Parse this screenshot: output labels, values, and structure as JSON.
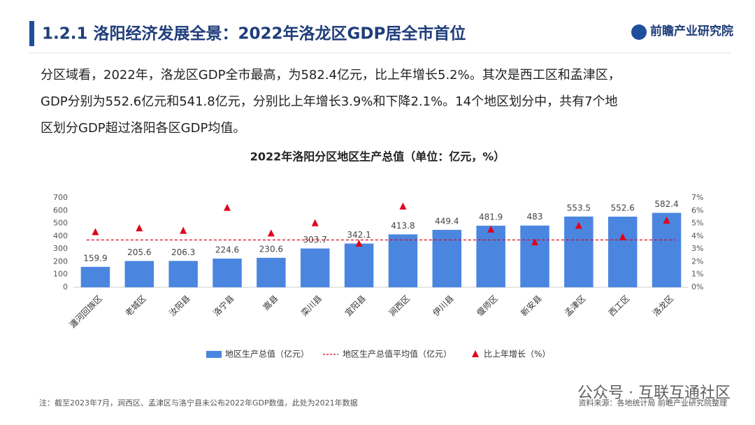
{
  "header": {
    "title": "1.2.1 洛阳经济发展全景：2022年洛龙区GDP居全市首位",
    "logo": "前瞻产业研究院"
  },
  "body": [
    "分区域看，2022年，洛龙区GDP全市最高，为582.4亿元，比上年增长5.2%。其次是西工区和孟津区，",
    "GDP分别为552.6亿元和541.8亿元，分别比上年增长3.9%和下降2.1%。14个地区划分中，共有7个地",
    "区划分GDP超过洛阳各区GDP均值。"
  ],
  "chart_data": {
    "type": "bar",
    "title": "2022年洛阳分区地区生产总值（单位：亿元，%）",
    "categories": [
      "瀍河回族区",
      "老城区",
      "汝阳县",
      "洛宁县",
      "嵩县",
      "栾川县",
      "宜阳县",
      "涧西区",
      "伊川县",
      "偃师区",
      "新安县",
      "孟津区",
      "西工区",
      "洛龙区"
    ],
    "series": [
      {
        "name": "地区生产总值（亿元）",
        "color": "#4a86e0",
        "values": [
          159.9,
          205.6,
          206.3,
          224.6,
          230.6,
          303.7,
          342.1,
          413.8,
          449.4,
          481.9,
          483,
          553.5,
          552.6,
          582.4
        ]
      },
      {
        "name": "比上年增长（%）",
        "color": "#e0001b",
        "axis": "y2",
        "marker": "triangle",
        "values": [
          4.3,
          4.6,
          4.4,
          6.2,
          4.2,
          5.0,
          3.4,
          6.3,
          null,
          4.5,
          3.5,
          4.8,
          3.9,
          5.2
        ]
      }
    ],
    "reference_line": {
      "name": "地区生产总值平均值（亿元）",
      "color": "#e0001b",
      "value": 370.7
    },
    "ylim": [
      0,
      700
    ],
    "yticks": [
      0,
      100,
      200,
      300,
      400,
      500,
      600,
      700
    ],
    "y2lim": [
      0,
      7
    ],
    "y2ticks": [
      {
        "value": 0,
        "label": "0%"
      },
      {
        "value": 1,
        "label": "1%"
      },
      {
        "value": 2,
        "label": "2%"
      },
      {
        "value": 3,
        "label": "3%"
      },
      {
        "value": 4,
        "label": "4%"
      },
      {
        "value": 5,
        "label": "5%"
      },
      {
        "value": 6,
        "label": "6%"
      },
      {
        "value": 7,
        "label": "7%"
      }
    ],
    "grid": false,
    "legend": "bottom"
  },
  "footnote": "注：截至2023年7月，涧西区、孟津区与洛宁县未公布2022年GDP数值，此处为2021年数据",
  "source": "资料来源：各地统计局 前瞻产业研究院整理",
  "watermark": "公众号 · 互联互通社区"
}
